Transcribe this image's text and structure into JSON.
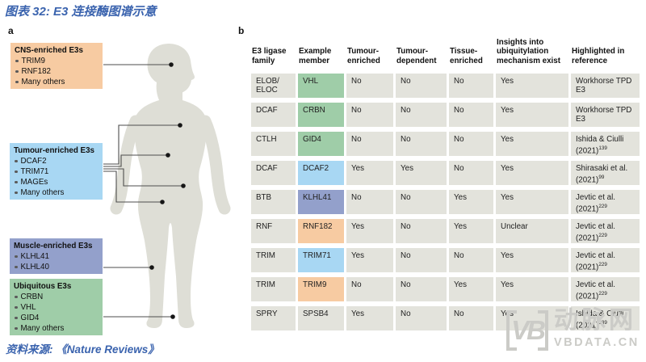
{
  "title": "图表 32: E3 连接酶图谱示意",
  "source": "资料来源: 《Nature Reviews》",
  "colors": {
    "title_blue": "#3A63AE",
    "orange": "#F7CBA2",
    "blue": "#A8D7F3",
    "purple": "#93A0CB",
    "green": "#9FCDA8",
    "cell_gray": "#E3E3DC",
    "body_gray": "#DEDED6",
    "line_dark": "#4D4D4D",
    "wm_gray": "#CBCBC7"
  },
  "panel_a": {
    "label": "a",
    "boxes": [
      {
        "title": "CNS-enriched E3s",
        "color": "orange",
        "items": [
          "TRIM9",
          "RNF182",
          "Many others"
        ]
      },
      {
        "title": "Tumour-enriched E3s",
        "color": "blue",
        "items": [
          "DCAF2",
          "TRIM71",
          "MAGEs",
          "Many others"
        ]
      },
      {
        "title": "Muscle-enriched E3s",
        "color": "purple",
        "items": [
          "KLHL41",
          "KLHL40"
        ]
      },
      {
        "title": "Ubiquitous E3s",
        "color": "green",
        "items": [
          "CRBN",
          "VHL",
          "GID4",
          "Many others"
        ]
      }
    ]
  },
  "panel_b": {
    "label": "b",
    "table": {
      "columns": [
        "E3 ligase family",
        "Example member",
        "Tumour-enriched",
        "Tumour-dependent",
        "Tissue-enriched",
        "Insights into ubiquitylation mechanism exist",
        "Highlighted in reference"
      ],
      "rows": [
        {
          "family": "ELOB/\nELOC",
          "member": "VHL",
          "member_color": "green",
          "tumour_enriched": "No",
          "tumour_dependent": "No",
          "tissue_enriched": "No",
          "insights": "Yes",
          "reference": "Workhorse TPD E3",
          "ref_sup": ""
        },
        {
          "family": "DCAF",
          "member": "CRBN",
          "member_color": "green",
          "tumour_enriched": "No",
          "tumour_dependent": "No",
          "tissue_enriched": "No",
          "insights": "Yes",
          "reference": "Workhorse TPD E3",
          "ref_sup": ""
        },
        {
          "family": "CTLH",
          "member": "GID4",
          "member_color": "green",
          "tumour_enriched": "No",
          "tumour_dependent": "No",
          "tissue_enriched": "No",
          "insights": "Yes",
          "reference": "Ishida & Ciulli (2021)",
          "ref_sup": "139"
        },
        {
          "family": "DCAF",
          "member": "DCAF2",
          "member_color": "blue",
          "tumour_enriched": "Yes",
          "tumour_dependent": "Yes",
          "tissue_enriched": "No",
          "insights": "Yes",
          "reference": "Shirasaki et al. (2021)",
          "ref_sup": "99"
        },
        {
          "family": "BTB",
          "member": "KLHL41",
          "member_color": "purple",
          "tumour_enriched": "No",
          "tumour_dependent": "No",
          "tissue_enriched": "Yes",
          "insights": "Yes",
          "reference": "Jevtic et al. (2021)",
          "ref_sup": "229"
        },
        {
          "family": "RNF",
          "member": "RNF182",
          "member_color": "orange",
          "tumour_enriched": "Yes",
          "tumour_dependent": "No",
          "tissue_enriched": "Yes",
          "insights": "Unclear",
          "reference": "Jevtic et al. (2021)",
          "ref_sup": "229"
        },
        {
          "family": "TRIM",
          "member": "TRIM71",
          "member_color": "blue",
          "tumour_enriched": "Yes",
          "tumour_dependent": "No",
          "tissue_enriched": "No",
          "insights": "Yes",
          "reference": "Jevtic et al. (2021)",
          "ref_sup": "229"
        },
        {
          "family": "TRIM",
          "member": "TRIM9",
          "member_color": "orange",
          "tumour_enriched": "No",
          "tumour_dependent": "No",
          "tissue_enriched": "Yes",
          "insights": "Yes",
          "reference": "Jevtic et al. (2021)",
          "ref_sup": "229"
        },
        {
          "family": "SPRY",
          "member": "SPSB4",
          "member_color": null,
          "tumour_enriched": "Yes",
          "tumour_dependent": "No",
          "tissue_enriched": "No",
          "insights": "Yes",
          "reference": "Ishida & Ciulli (2021)",
          "ref_sup": "139"
        }
      ]
    }
  },
  "watermark": {
    "logo": "VB",
    "name": "动脉网",
    "url": "VBDATA.CN"
  }
}
